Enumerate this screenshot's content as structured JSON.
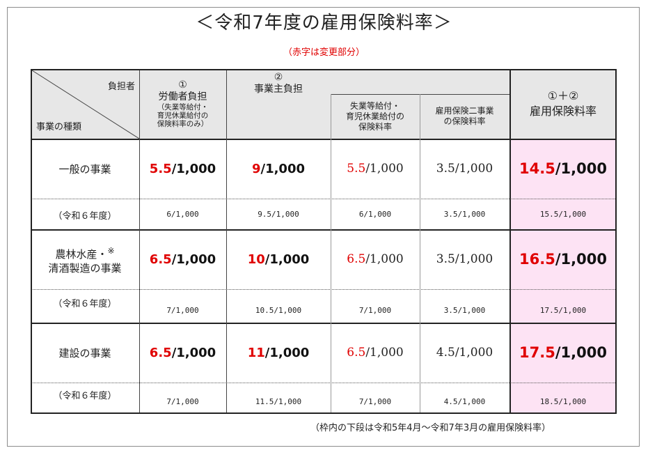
{
  "title": "＜令和7年度の雇用保険料率＞",
  "subtitle": "（赤字は変更部分）",
  "header": {
    "corner_top": "負担者",
    "corner_bottom": "事業の種類",
    "col1_mark": "①",
    "col1_title": "労働者負担",
    "col1_note": [
      "（失業等給付・",
      "育児休業給付の",
      "保険料率のみ）"
    ],
    "col2_mark": "②",
    "col2_title": "事業主負担",
    "col2a_title": [
      "失業等給付・",
      "育児休業給付の",
      "保険料率"
    ],
    "col2b_title": [
      "雇用保険二事業",
      "の保険料率"
    ],
    "col3_mark": "①＋②",
    "col3_title": "雇用保険料率"
  },
  "rows": [
    {
      "label": [
        "一般の事業"
      ],
      "worker": {
        "red": "5.5",
        "rest": "/1,000"
      },
      "employer": {
        "red": "9",
        "rest": "/1,000"
      },
      "emp_a": {
        "red": "5.5",
        "rest": "/1,000"
      },
      "emp_b": {
        "red": "",
        "rest": "3.5/1,000"
      },
      "total": {
        "red": "14.5",
        "rest": "/1,000"
      },
      "prev_label": "（令和６年度）",
      "prev": [
        "6/1,000",
        "9.5/1,000",
        "6/1,000",
        "3.5/1,000",
        "15.5/1,000"
      ]
    },
    {
      "label": [
        "農林水産・",
        "清酒製造の事業"
      ],
      "label_mark": "※",
      "worker": {
        "red": "6.5",
        "rest": "/1,000"
      },
      "employer": {
        "red": "10",
        "rest": "/1,000"
      },
      "emp_a": {
        "red": "6.5",
        "rest": "/1,000"
      },
      "emp_b": {
        "red": "",
        "rest": "3.5/1,000"
      },
      "total": {
        "red": "16.5",
        "rest": "/1,000"
      },
      "prev_label": "（令和６年度）",
      "prev": [
        "7/1,000",
        "10.5/1,000",
        "7/1,000",
        "3.5/1,000",
        "17.5/1,000"
      ]
    },
    {
      "label": [
        "建設の事業"
      ],
      "worker": {
        "red": "6.5",
        "rest": "/1,000"
      },
      "employer": {
        "red": "11",
        "rest": "/1,000"
      },
      "emp_a": {
        "red": "6.5",
        "rest": "/1,000"
      },
      "emp_b": {
        "red": "",
        "rest": "4.5/1,000"
      },
      "total": {
        "red": "17.5",
        "rest": "/1,000"
      },
      "prev_label": "（令和６年度）",
      "prev": [
        "7/1,000",
        "11.5/1,000",
        "7/1,000",
        "4.5/1,000",
        "18.5/1,000"
      ]
    }
  ],
  "footnote": "（枠内の下段は令和5年4月～令和7年3月の雇用保険料率）",
  "colors": {
    "red": "#e00000",
    "header_bg": "#e7e7e7",
    "total_bg": "#fde3f4"
  }
}
